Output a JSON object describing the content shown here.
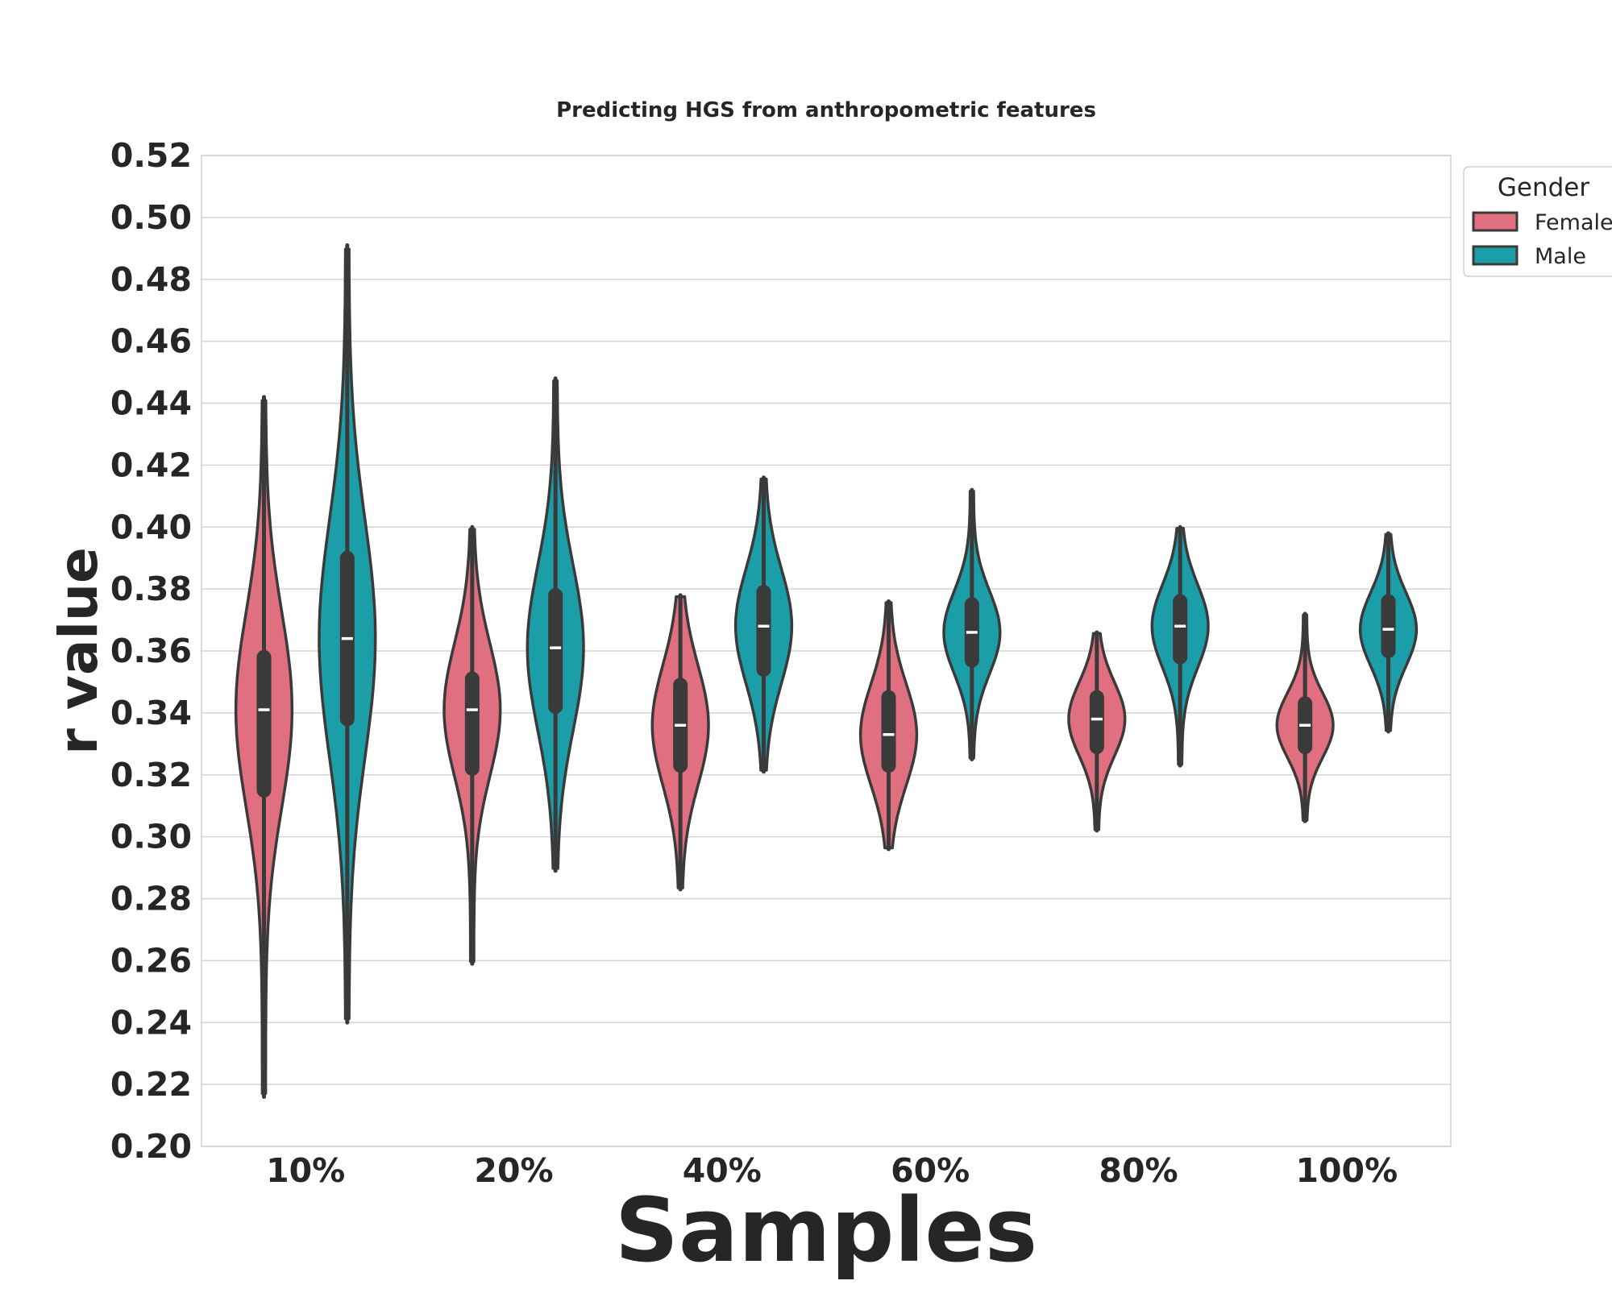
{
  "chart_data": {
    "type": "violin",
    "title": "Predicting HGS from anthropometric features",
    "xlabel": "Samples",
    "ylabel": "r value",
    "categories": [
      "10%",
      "20%",
      "40%",
      "60%",
      "80%",
      "100%"
    ],
    "ylim": [
      0.2,
      0.52
    ],
    "yticks": [
      "0.20",
      "0.22",
      "0.24",
      "0.26",
      "0.28",
      "0.30",
      "0.32",
      "0.34",
      "0.36",
      "0.38",
      "0.40",
      "0.42",
      "0.44",
      "0.46",
      "0.48",
      "0.50",
      "0.52"
    ],
    "grid": "horizontal",
    "legend": {
      "title": "Gender",
      "placement": "outside-top-right",
      "entries": [
        {
          "label": "Female",
          "color": "#e06f7f"
        },
        {
          "label": "Male",
          "color": "#1b9ea8"
        }
      ]
    },
    "series": [
      {
        "name": "Female",
        "color": "#e06f7f",
        "stats": [
          {
            "category": "10%",
            "min": 0.216,
            "q1": 0.315,
            "median": 0.341,
            "q3": 0.358,
            "max": 0.442
          },
          {
            "category": "20%",
            "min": 0.259,
            "q1": 0.322,
            "median": 0.341,
            "q3": 0.351,
            "max": 0.4
          },
          {
            "category": "40%",
            "min": 0.283,
            "q1": 0.323,
            "median": 0.336,
            "q3": 0.349,
            "max": 0.378
          },
          {
            "category": "60%",
            "min": 0.296,
            "q1": 0.323,
            "median": 0.333,
            "q3": 0.345,
            "max": 0.376
          },
          {
            "category": "80%",
            "min": 0.302,
            "q1": 0.329,
            "median": 0.338,
            "q3": 0.345,
            "max": 0.366
          },
          {
            "category": "100%",
            "min": 0.305,
            "q1": 0.329,
            "median": 0.336,
            "q3": 0.343,
            "max": 0.372
          }
        ]
      },
      {
        "name": "Male",
        "color": "#1b9ea8",
        "stats": [
          {
            "category": "10%",
            "min": 0.24,
            "q1": 0.338,
            "median": 0.364,
            "q3": 0.39,
            "max": 0.491
          },
          {
            "category": "20%",
            "min": 0.289,
            "q1": 0.342,
            "median": 0.361,
            "q3": 0.378,
            "max": 0.448
          },
          {
            "category": "40%",
            "min": 0.321,
            "q1": 0.354,
            "median": 0.368,
            "q3": 0.379,
            "max": 0.416
          },
          {
            "category": "60%",
            "min": 0.325,
            "q1": 0.357,
            "median": 0.366,
            "q3": 0.375,
            "max": 0.412
          },
          {
            "category": "80%",
            "min": 0.323,
            "q1": 0.358,
            "median": 0.368,
            "q3": 0.376,
            "max": 0.4
          },
          {
            "category": "100%",
            "min": 0.334,
            "q1": 0.36,
            "median": 0.367,
            "q3": 0.376,
            "max": 0.398
          }
        ]
      }
    ]
  }
}
